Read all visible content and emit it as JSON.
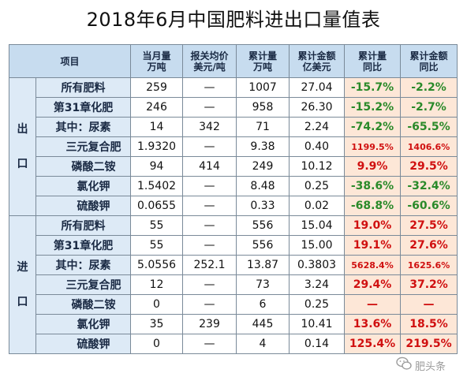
{
  "title": "2018年6月中国肥料进出口量值表",
  "headers": {
    "item": "项目",
    "monthly_qty": [
      "当月量",
      "万吨"
    ],
    "avg_price": [
      "报关均价",
      "美元/吨"
    ],
    "cum_qty": [
      "累计量",
      "万吨"
    ],
    "cum_value": [
      "累计金额",
      "亿美元"
    ],
    "cum_qty_yoy": [
      "累计量",
      "同比"
    ],
    "cum_value_yoy": [
      "累计金额",
      "同比"
    ]
  },
  "sections": [
    {
      "label": [
        "出",
        "口"
      ],
      "rows": [
        {
          "name": "所有肥料",
          "sub": false,
          "monthly": "259",
          "price": "—",
          "cum_qty": "1007",
          "cum_value": "27.04",
          "qty_yoy": "-15.7%",
          "value_yoy": "-2.2%"
        },
        {
          "name": "第31章化肥",
          "sub": false,
          "monthly": "246",
          "price": "—",
          "cum_qty": "958",
          "cum_value": "26.30",
          "qty_yoy": "-15.2%",
          "value_yoy": "-2.7%"
        },
        {
          "name": "其中：尿素",
          "sub": false,
          "monthly": "14",
          "price": "342",
          "cum_qty": "71",
          "cum_value": "2.24",
          "qty_yoy": "-74.2%",
          "value_yoy": "-65.5%"
        },
        {
          "name": "三元复合肥",
          "sub": true,
          "monthly": "1.9320",
          "price": "—",
          "cum_qty": "9.38",
          "cum_value": "0.40",
          "qty_yoy": "1199.5%",
          "value_yoy": "1406.6%"
        },
        {
          "name": "磷酸二铵",
          "sub": true,
          "monthly": "94",
          "price": "414",
          "cum_qty": "249",
          "cum_value": "10.12",
          "qty_yoy": "9.9%",
          "value_yoy": "29.5%"
        },
        {
          "name": "氯化钾",
          "sub": true,
          "monthly": "1.5402",
          "price": "—",
          "cum_qty": "8.48",
          "cum_value": "0.25",
          "qty_yoy": "-38.6%",
          "value_yoy": "-32.4%"
        },
        {
          "name": "硫酸钾",
          "sub": true,
          "monthly": "0.0655",
          "price": "—",
          "cum_qty": "0.33",
          "cum_value": "0.02",
          "qty_yoy": "-68.8%",
          "value_yoy": "-60.6%"
        }
      ]
    },
    {
      "label": [
        "进",
        "口"
      ],
      "rows": [
        {
          "name": "所有肥料",
          "sub": false,
          "monthly": "55",
          "price": "—",
          "cum_qty": "556",
          "cum_value": "15.04",
          "qty_yoy": "19.0%",
          "value_yoy": "27.5%"
        },
        {
          "name": "第31章化肥",
          "sub": false,
          "monthly": "55",
          "price": "—",
          "cum_qty": "556",
          "cum_value": "15.00",
          "qty_yoy": "19.1%",
          "value_yoy": "27.6%"
        },
        {
          "name": "其中：尿素",
          "sub": false,
          "monthly": "5.0556",
          "price": "252.1",
          "cum_qty": "13.87",
          "cum_value": "0.3803",
          "qty_yoy": "5628.4%",
          "value_yoy": "1625.6%"
        },
        {
          "name": "三元复合肥",
          "sub": true,
          "monthly": "12",
          "price": "—",
          "cum_qty": "73",
          "cum_value": "3.24",
          "qty_yoy": "29.4%",
          "value_yoy": "37.2%"
        },
        {
          "name": "磷酸二铵",
          "sub": true,
          "monthly": "0",
          "price": "—",
          "cum_qty": "6",
          "cum_value": "0.25",
          "qty_yoy": "—",
          "value_yoy": "—"
        },
        {
          "name": "氯化钾",
          "sub": true,
          "monthly": "35",
          "price": "239",
          "cum_qty": "445",
          "cum_value": "10.41",
          "qty_yoy": "13.6%",
          "value_yoy": "18.5%"
        },
        {
          "name": "硫酸钾",
          "sub": true,
          "monthly": "0",
          "price": "—",
          "cum_qty": "4",
          "cum_value": "0.14",
          "qty_yoy": "125.4%",
          "value_yoy": "219.5%"
        }
      ]
    }
  ],
  "watermark": {
    "text": "肥头条",
    "icon": "wechat-icon"
  },
  "colors": {
    "header_bg": "#c7dcef",
    "name_bg": "#ddeaf6",
    "pct_bg": "#fde7d7",
    "negative": "#2a8a2a",
    "positive": "#d01010"
  }
}
